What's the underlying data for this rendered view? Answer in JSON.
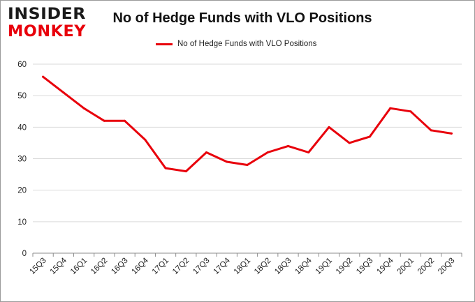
{
  "logo": {
    "line1": "INSIDER",
    "line2": "MONKEY"
  },
  "colors": {
    "line": "#e8000b",
    "grid": "#d9d9d9",
    "axis": "#8c8c8c",
    "logo_dark": "#1a1a1a",
    "logo_red": "#e8000b"
  },
  "chart_data": {
    "type": "line",
    "title": "No of Hedge Funds with VLO Positions",
    "xlabel": "",
    "ylabel": "",
    "ylim": [
      0,
      60
    ],
    "yticks": [
      0,
      10,
      20,
      30,
      40,
      50,
      60
    ],
    "grid": true,
    "legend_position": "top-center",
    "categories": [
      "15Q3",
      "15Q4",
      "16Q1",
      "16Q2",
      "16Q3",
      "16Q4",
      "17Q1",
      "17Q2",
      "17Q3",
      "17Q4",
      "18Q1",
      "18Q2",
      "18Q3",
      "18Q4",
      "19Q1",
      "19Q2",
      "19Q3",
      "19Q4",
      "20Q1",
      "20Q2",
      "20Q3"
    ],
    "series": [
      {
        "name": "No of Hedge Funds with VLO Positions",
        "values": [
          56,
          51,
          46,
          42,
          42,
          36,
          27,
          26,
          32,
          29,
          28,
          32,
          34,
          32,
          40,
          35,
          37,
          46,
          45,
          39,
          38
        ]
      }
    ]
  }
}
